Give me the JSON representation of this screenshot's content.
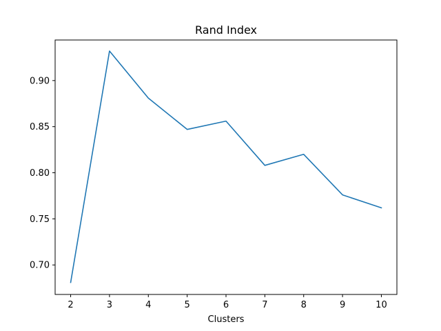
{
  "chart_data": {
    "type": "line",
    "title": "Rand Index",
    "xlabel": "Clusters",
    "ylabel": "",
    "x": [
      2,
      3,
      4,
      5,
      6,
      7,
      8,
      9,
      10
    ],
    "series": [
      {
        "values": [
          0.681,
          0.932,
          0.881,
          0.847,
          0.856,
          0.808,
          0.82,
          0.776,
          0.762
        ],
        "color": "#1f77b4"
      }
    ],
    "xlim": [
      1.6,
      10.4
    ],
    "ylim": [
      0.668,
      0.944
    ],
    "xticks": [
      "2",
      "3",
      "4",
      "5",
      "6",
      "7",
      "8",
      "9",
      "10"
    ],
    "yticks": [
      "0.70",
      "0.75",
      "0.80",
      "0.85",
      "0.90"
    ],
    "grid": false,
    "legend": "none"
  }
}
